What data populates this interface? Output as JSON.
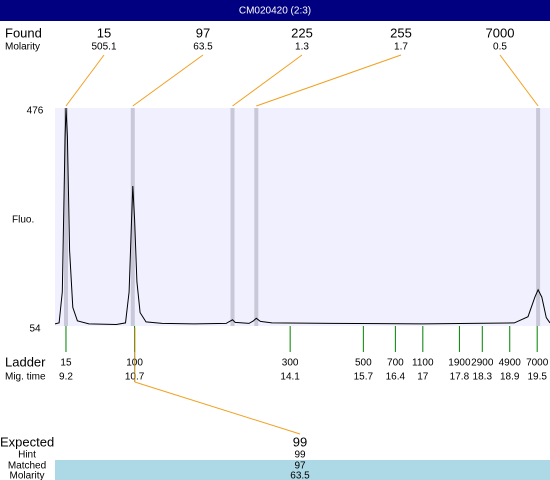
{
  "header": {
    "title": "CM020420 (2:3)"
  },
  "found": {
    "label": "Found",
    "molarity_label": "Molarity",
    "sizes": [
      15,
      97,
      225,
      255,
      7000
    ],
    "molarity": [
      505.1,
      63.5,
      1.3,
      1.7,
      0.5
    ],
    "times": [
      9.2,
      10.66,
      12.84,
      13.36,
      19.52
    ]
  },
  "chart_data": {
    "type": "line",
    "ylabel": "Fluo.",
    "x": [
      8.96,
      9.05,
      9.12,
      9.18,
      9.2,
      9.23,
      9.28,
      9.35,
      9.45,
      9.7,
      10.3,
      10.5,
      10.58,
      10.63,
      10.66,
      10.7,
      10.75,
      10.82,
      10.95,
      11.3,
      12.0,
      12.7,
      12.8,
      12.84,
      12.9,
      13.2,
      13.3,
      13.36,
      13.45,
      13.7,
      15,
      17,
      19.0,
      19.3,
      19.45,
      19.52,
      19.6,
      19.7,
      19.78
    ],
    "values": [
      58,
      60,
      120,
      420,
      476,
      420,
      200,
      90,
      64,
      58,
      57,
      60,
      120,
      250,
      325,
      260,
      140,
      80,
      62,
      59,
      58,
      59,
      64,
      66,
      61,
      59,
      64,
      69,
      63,
      60,
      59,
      58,
      60,
      72,
      110,
      124,
      110,
      70,
      60
    ],
    "color": "#000000",
    "xlim": [
      8.96,
      19.78
    ],
    "ylim": [
      54,
      476
    ],
    "yticks": [
      54,
      476
    ]
  },
  "ladder": {
    "label": "Ladder",
    "time_label": "Mig. time",
    "sizes": [
      15,
      100,
      300,
      500,
      700,
      1100,
      1900,
      2900,
      4900,
      7000
    ],
    "times": [
      9.2,
      10.7,
      14.1,
      15.7,
      16.4,
      17,
      17.8,
      18.3,
      18.9,
      19.5
    ]
  },
  "expected": {
    "label": "Expected",
    "value": 99,
    "hint_label": "Hint",
    "hint": 99,
    "matched_label": "Matched",
    "matched": 97,
    "molarity_label": "Molarity",
    "molarity": 63.5
  }
}
